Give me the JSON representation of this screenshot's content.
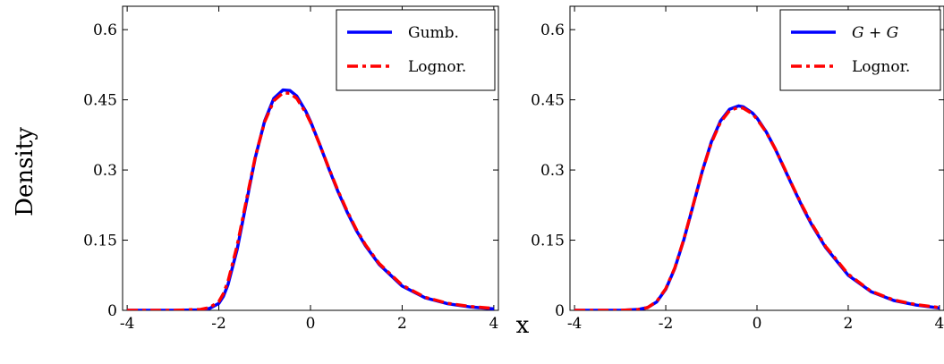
{
  "ylabel": "Density",
  "xlabel": "x",
  "chart_data": [
    {
      "type": "line",
      "title": "",
      "xlim": [
        -4.1,
        4.1
      ],
      "ylim": [
        0,
        0.65
      ],
      "xticks": [
        -4,
        -2,
        0,
        2,
        4
      ],
      "xtick_labels": [
        "-4",
        "-2",
        "0",
        "2",
        "4"
      ],
      "yticks": [
        0,
        0.15,
        0.3,
        0.45,
        0.6
      ],
      "ytick_labels": [
        "0",
        "0.15",
        "0.3",
        "0.45",
        "0.6"
      ],
      "grid": false,
      "legend_position": "top-right",
      "series": [
        {
          "name": "Gumb.",
          "color": "#0000ff",
          "style": "solid",
          "x": [
            -4,
            -3,
            -2.4,
            -2.2,
            -2.0,
            -1.9,
            -1.8,
            -1.6,
            -1.4,
            -1.2,
            -1.0,
            -0.8,
            -0.6,
            -0.45,
            -0.3,
            -0.1,
            0,
            0.2,
            0.4,
            0.6,
            0.8,
            1.0,
            1.2,
            1.5,
            2.0,
            2.5,
            3.0,
            3.5,
            4.0
          ],
          "values": [
            0.0,
            0.0,
            0.001,
            0.004,
            0.015,
            0.03,
            0.055,
            0.13,
            0.23,
            0.328,
            0.405,
            0.453,
            0.471,
            0.47,
            0.458,
            0.425,
            0.404,
            0.355,
            0.303,
            0.254,
            0.21,
            0.171,
            0.138,
            0.098,
            0.052,
            0.027,
            0.014,
            0.007,
            0.003
          ]
        },
        {
          "name": "Lognor.",
          "color": "#ff0000",
          "style": "dashdot",
          "x": [
            -4,
            -3,
            -2.4,
            -2.2,
            -2.0,
            -1.9,
            -1.8,
            -1.6,
            -1.4,
            -1.2,
            -1.0,
            -0.8,
            -0.6,
            -0.45,
            -0.3,
            -0.1,
            0,
            0.2,
            0.4,
            0.6,
            0.8,
            1.0,
            1.2,
            1.5,
            2.0,
            2.5,
            3.0,
            3.5,
            4.0
          ],
          "values": [
            0.0,
            0.0,
            0.002,
            0.006,
            0.019,
            0.036,
            0.062,
            0.138,
            0.235,
            0.33,
            0.403,
            0.448,
            0.465,
            0.464,
            0.453,
            0.422,
            0.402,
            0.355,
            0.304,
            0.256,
            0.212,
            0.173,
            0.14,
            0.1,
            0.054,
            0.028,
            0.015,
            0.008,
            0.004
          ]
        }
      ]
    },
    {
      "type": "line",
      "title": "",
      "xlim": [
        -4.1,
        4.1
      ],
      "ylim": [
        0,
        0.65
      ],
      "xticks": [
        -4,
        -2,
        0,
        2,
        4
      ],
      "xtick_labels": [
        "-4",
        "-2",
        "0",
        "2",
        "4"
      ],
      "yticks": [
        0,
        0.15,
        0.3,
        0.45,
        0.6
      ],
      "ytick_labels": [
        "0",
        "0.15",
        "0.3",
        "0.45",
        "0.6"
      ],
      "grid": false,
      "legend_position": "top-right",
      "series": [
        {
          "name": "G + G",
          "italic": true,
          "color": "#0000ff",
          "style": "solid",
          "x": [
            -4,
            -3,
            -2.6,
            -2.4,
            -2.2,
            -2.0,
            -1.8,
            -1.6,
            -1.4,
            -1.2,
            -1.0,
            -0.8,
            -0.6,
            -0.4,
            -0.3,
            -0.1,
            0,
            0.2,
            0.4,
            0.6,
            0.8,
            1.0,
            1.2,
            1.5,
            2.0,
            2.5,
            3.0,
            3.5,
            4.0
          ],
          "values": [
            0.0,
            0.0,
            0.002,
            0.006,
            0.018,
            0.045,
            0.09,
            0.152,
            0.224,
            0.297,
            0.36,
            0.405,
            0.43,
            0.437,
            0.435,
            0.422,
            0.411,
            0.382,
            0.345,
            0.303,
            0.261,
            0.22,
            0.183,
            0.135,
            0.075,
            0.04,
            0.021,
            0.011,
            0.005
          ]
        },
        {
          "name": "Lognor.",
          "color": "#ff0000",
          "style": "dashdot",
          "x": [
            -4,
            -3,
            -2.6,
            -2.4,
            -2.2,
            -2.0,
            -1.8,
            -1.6,
            -1.4,
            -1.2,
            -1.0,
            -0.8,
            -0.6,
            -0.4,
            -0.3,
            -0.1,
            0,
            0.2,
            0.4,
            0.6,
            0.8,
            1.0,
            1.2,
            1.5,
            2.0,
            2.5,
            3.0,
            3.5,
            4.0
          ],
          "values": [
            0.0,
            0.0,
            0.002,
            0.006,
            0.019,
            0.046,
            0.091,
            0.153,
            0.225,
            0.297,
            0.358,
            0.402,
            0.427,
            0.434,
            0.432,
            0.42,
            0.409,
            0.381,
            0.345,
            0.304,
            0.262,
            0.222,
            0.185,
            0.137,
            0.077,
            0.041,
            0.022,
            0.012,
            0.006
          ]
        }
      ]
    }
  ]
}
